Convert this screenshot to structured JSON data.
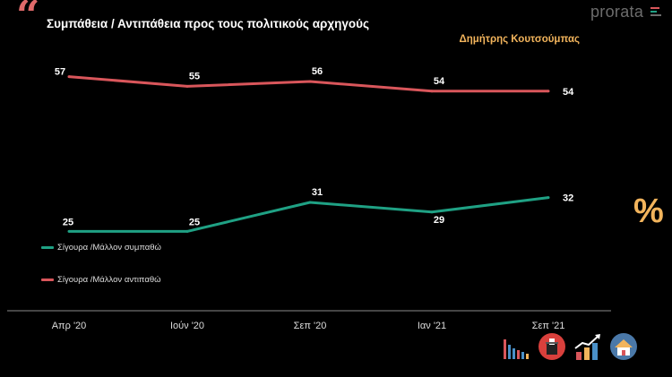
{
  "header": {
    "quote_glyph": "“",
    "title": "Συμπάθεια / Αντιπάθεια προς τους πολιτικούς αρχηγούς",
    "subtitle": "Δημήτρης Κουτσούμπας",
    "logo_text": "prorata",
    "percent_glyph": "%"
  },
  "colors": {
    "sympathy": "#1fa184",
    "antipathy": "#d9565b",
    "accent": "#f2b45c",
    "axis": "#8a8a8a"
  },
  "chart_data": {
    "type": "line",
    "categories": [
      "Απρ '20",
      "Ιούν '20",
      "Σεπ '20",
      "Ιαν '21",
      "Σεπ '21"
    ],
    "series": [
      {
        "name": "Σίγουρα /Μάλλον αντιπαθώ",
        "values": [
          57,
          55,
          56,
          54,
          54
        ],
        "color": "#d9565b"
      },
      {
        "name": "Σίγουρα /Μάλλον συμπαθώ",
        "values": [
          25,
          25,
          31,
          29,
          32
        ],
        "color": "#1fa184"
      }
    ],
    "title": "Συμπάθεια / Αντιπάθεια προς τους πολιτικούς αρχηγούς",
    "subtitle": "Δημήτρης Κουτσούμπας",
    "xlabel": "",
    "ylabel": "",
    "ylim": [
      0,
      70
    ],
    "grid": false,
    "legend_position": "left"
  },
  "footer_icons": [
    "bar-chart-icon",
    "ballot-box-icon",
    "trend-chart-icon",
    "house-icon"
  ]
}
